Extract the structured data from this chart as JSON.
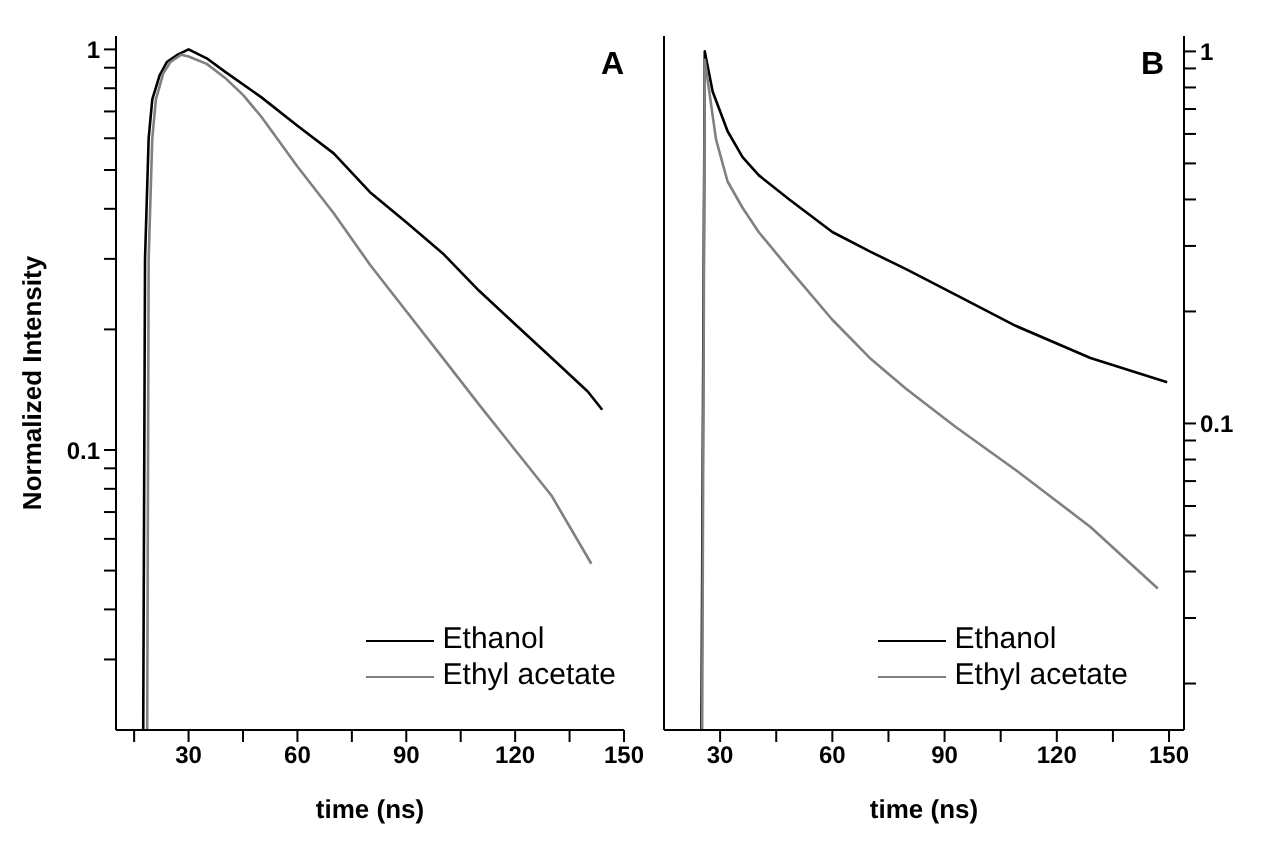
{
  "chart_data": [
    {
      "type": "line",
      "ylabel": "Normalized Intensity",
      "xlabel": "time (ns)",
      "annotations": [
        "A"
      ],
      "log": true,
      "legend": "bottom right",
      "xlim": [
        10,
        150
      ],
      "xticks": [
        {
          "value": 15,
          "label": null
        },
        30,
        {
          "value": 45,
          "label": null
        },
        60,
        {
          "value": 75,
          "label": null
        },
        90,
        {
          "value": 105,
          "label": null
        },
        120,
        {
          "value": 135,
          "label": null
        },
        150
      ],
      "ylim": [
        0.02,
        1.08
      ],
      "yticks": [
        {
          "value": 0.03,
          "label": null
        },
        {
          "value": 0.04,
          "label": null
        },
        {
          "value": 0.05,
          "label": null
        },
        {
          "value": 0.06,
          "label": null
        },
        {
          "value": 0.07,
          "label": null
        },
        {
          "value": 0.08,
          "label": null
        },
        {
          "value": 0.09,
          "label": null
        },
        0.1,
        {
          "value": 0.2,
          "label": null
        },
        {
          "value": 0.3,
          "label": null
        },
        {
          "value": 0.4,
          "label": null
        },
        {
          "value": 0.5,
          "label": null
        },
        {
          "value": 0.6,
          "label": null
        },
        {
          "value": 0.7,
          "label": null
        },
        {
          "value": 0.8,
          "label": null
        },
        {
          "value": 0.9,
          "label": null
        },
        1
      ],
      "series": [
        {
          "name": "Ethanol",
          "color": "#000000",
          "x": [
            17.5,
            18,
            19,
            20,
            22,
            24,
            27,
            30,
            35,
            40,
            50,
            60,
            70,
            80,
            90,
            100,
            110,
            120,
            130,
            140,
            144
          ],
          "values": [
            0.02,
            0.3,
            0.6,
            0.75,
            0.86,
            0.93,
            0.97,
            1,
            0.95,
            0.88,
            0.76,
            0.645,
            0.55,
            0.44,
            0.37,
            0.31,
            0.25,
            0.206,
            0.17,
            0.14,
            0.126
          ]
        },
        {
          "name": "Ethyl acetate",
          "color": "#808080",
          "x": [
            18.6,
            19,
            20,
            21,
            23,
            25,
            28,
            30,
            35,
            40,
            45,
            50,
            60,
            70,
            80,
            90,
            100,
            110,
            120,
            130,
            141
          ],
          "values": [
            0.02,
            0.3,
            0.6,
            0.75,
            0.87,
            0.93,
            0.97,
            0.96,
            0.92,
            0.85,
            0.77,
            0.68,
            0.51,
            0.39,
            0.29,
            0.222,
            0.17,
            0.13,
            0.1,
            0.077,
            0.052
          ]
        }
      ]
    },
    {
      "type": "line",
      "xlabel": "time (ns)",
      "annotations": [
        "B"
      ],
      "log": "y2",
      "legend": "bottom right",
      "xlim": [
        15,
        154
      ],
      "xticks": [
        30,
        {
          "value": 45,
          "label": null
        },
        60,
        {
          "value": 75,
          "label": null
        },
        90,
        {
          "value": 105,
          "label": null
        },
        120,
        {
          "value": 135,
          "label": null
        },
        150
      ],
      "y2lim": [
        0.015,
        1.1
      ],
      "y2ticks": [
        {
          "value": 0.02,
          "label": null
        },
        {
          "value": 0.03,
          "label": null
        },
        {
          "value": 0.04,
          "label": null
        },
        {
          "value": 0.05,
          "label": null
        },
        {
          "value": 0.06,
          "label": null
        },
        {
          "value": 0.07,
          "label": null
        },
        {
          "value": 0.08,
          "label": null
        },
        {
          "value": 0.09,
          "label": null
        },
        0.1,
        {
          "value": 0.2,
          "label": null
        },
        {
          "value": 0.3,
          "label": null
        },
        {
          "value": 0.4,
          "label": null
        },
        {
          "value": 0.5,
          "label": null
        },
        {
          "value": 0.6,
          "label": null
        },
        {
          "value": 0.7,
          "label": null
        },
        {
          "value": 0.8,
          "label": null
        },
        {
          "value": 0.9,
          "label": null
        },
        1
      ],
      "series": [
        {
          "name": "Ethanol",
          "color": "#000000",
          "axis": "y2",
          "x": [
            25,
            25.9,
            28,
            32,
            36,
            40.3,
            48.5,
            60,
            70,
            79.7,
            92.9,
            109,
            129,
            149.5
          ],
          "values": [
            0.015,
            1,
            0.78,
            0.61,
            0.52,
            0.465,
            0.4,
            0.327,
            0.29,
            0.26,
            0.222,
            0.183,
            0.15,
            0.129
          ]
        },
        {
          "name": "Ethyl acetate",
          "color": "#808080",
          "axis": "y2",
          "x": [
            25.2,
            25.9,
            28.9,
            32,
            36,
            40.3,
            48.5,
            60,
            70,
            79.7,
            92.9,
            109,
            129,
            147
          ],
          "values": [
            0.015,
            0.95,
            0.58,
            0.447,
            0.38,
            0.327,
            0.26,
            0.19,
            0.15,
            0.124,
            0.098,
            0.075,
            0.0527,
            0.036
          ]
        }
      ]
    }
  ]
}
